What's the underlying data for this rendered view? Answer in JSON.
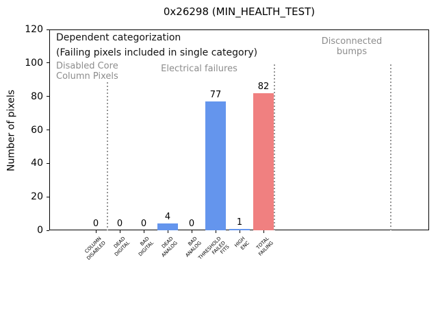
{
  "chart_data": {
    "type": "bar",
    "title": "0x26298 (MIN_HEALTH_TEST)",
    "ylabel": "Number of pixels",
    "xlabel": "",
    "categories": [
      "COLUMN\nDISABLED",
      "DEAD\nDIGITAL",
      "BAD\nDIGITAL",
      "DEAD\nANALOG",
      "BAD\nANALOG",
      "THRESHOLD\nFAILED\nFITS",
      "HIGH\nENC",
      "TOTAL\nFAILING"
    ],
    "values": [
      0,
      0,
      0,
      4,
      0,
      77,
      1,
      82
    ],
    "value_labels": [
      "0",
      "0",
      "0",
      "4",
      "0",
      "77",
      "1",
      "82"
    ],
    "bar_colors": [
      "#6495ed",
      "#6495ed",
      "#6495ed",
      "#6495ed",
      "#6495ed",
      "#6495ed",
      "#6495ed",
      "#f08080"
    ],
    "yticks": [
      0,
      20,
      40,
      60,
      80,
      100,
      120
    ],
    "ylim": [
      0,
      120
    ],
    "grid": false,
    "legend": "none",
    "annotations": {
      "dependent": "Dependent categorization",
      "failing_note": "(Failing pixels included in single category)",
      "regions": [
        {
          "label": "Disabled Core\nColumn Pixels"
        },
        {
          "label": "Electrical failures"
        },
        {
          "label": "Disconnected\nbumps"
        }
      ]
    },
    "colors": {
      "bar_blue": "#6495ed",
      "bar_red": "#f08080",
      "annotation_gray": "#8c8c8c",
      "separator_gray": "#949494",
      "axis_black": "#000000"
    }
  }
}
